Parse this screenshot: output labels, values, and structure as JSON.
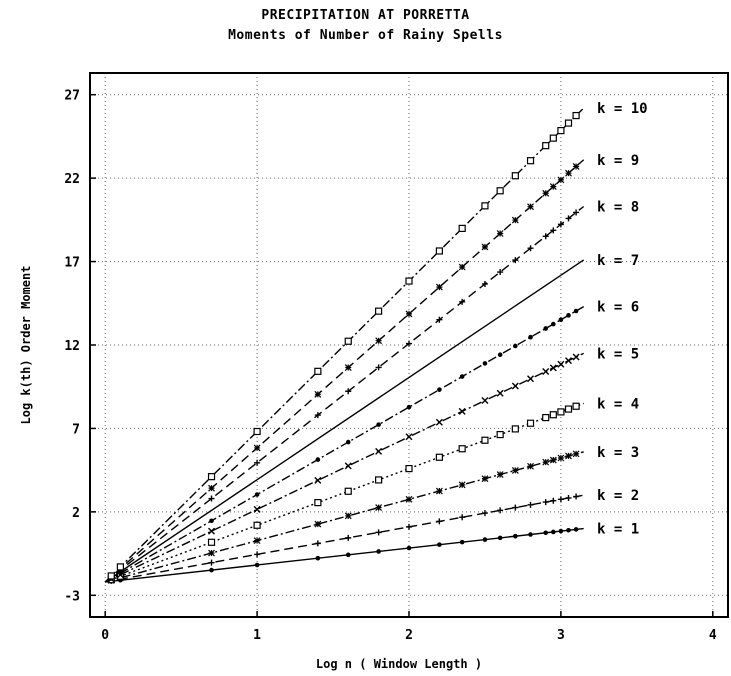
{
  "chart_data": {
    "type": "line",
    "title": "PRECIPITATION AT PORRETTA",
    "subtitle": "Moments of Number of Rainy Spells",
    "xlabel": "Log n ( Window Length )",
    "ylabel": "Log k(th) Order Moment",
    "xlim": [
      -0.1,
      4.1
    ],
    "ylim": [
      -4.3,
      28.3
    ],
    "xticks": [
      0,
      1,
      2,
      3,
      4
    ],
    "yticks": [
      -3,
      2,
      7,
      12,
      17,
      22,
      27
    ],
    "grid": true,
    "x_start": 0,
    "x_end": 3.15,
    "y_start": -2.2,
    "series": [
      {
        "name": "k = 1",
        "marker": "dot",
        "line": "solid",
        "y_end": 1.0
      },
      {
        "name": "k = 2",
        "marker": "plus",
        "line": "dashed",
        "y_end": 3.0
      },
      {
        "name": "k = 3",
        "marker": "asterisk",
        "line": "dashdot",
        "y_end": 5.6
      },
      {
        "name": "k = 4",
        "marker": "square",
        "line": "dotted",
        "y_end": 8.5
      },
      {
        "name": "k = 5",
        "marker": "x",
        "line": "dashdot",
        "y_end": 11.5
      },
      {
        "name": "k = 6",
        "marker": "dot",
        "line": "dashdot",
        "y_end": 14.3
      },
      {
        "name": "k = 7",
        "marker": "none",
        "line": "solid",
        "y_end": 17.1
      },
      {
        "name": "k = 8",
        "marker": "plus",
        "line": "dashed",
        "y_end": 20.3
      },
      {
        "name": "k = 9",
        "marker": "asterisk",
        "line": "dashed",
        "y_end": 23.1
      },
      {
        "name": "k = 10",
        "marker": "square",
        "line": "dashdot",
        "y_end": 26.2
      }
    ]
  }
}
